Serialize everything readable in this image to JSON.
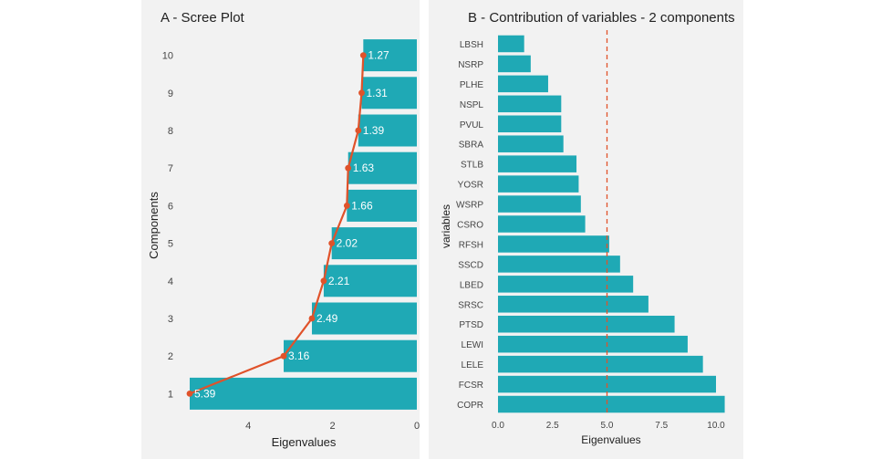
{
  "figure": {
    "panel_bg": "#f2f2f2",
    "bar_color": "#1fa9b5",
    "line_color": "#e0522a",
    "ref_line_color": "#e0522a"
  },
  "chart_data": [
    {
      "type": "bar",
      "orientation": "horizontal",
      "x_reversed": true,
      "title": "A - Scree Plot",
      "xlabel": "Eigenvalues",
      "ylabel": "Components",
      "categories": [
        "1",
        "2",
        "3",
        "4",
        "5",
        "6",
        "7",
        "8",
        "9",
        "10"
      ],
      "values": [
        5.39,
        3.16,
        2.49,
        2.21,
        2.02,
        1.66,
        1.63,
        1.39,
        1.31,
        1.27
      ],
      "data_labels": [
        "5.39",
        "3.16",
        "2.49",
        "2.21",
        "2.02",
        "1.66",
        "1.63",
        "1.39",
        "1.31",
        "1.27"
      ],
      "overlay": "line with points connecting bar ends",
      "xticks": [
        "0",
        "2",
        "4"
      ],
      "xlim": [
        0,
        5.5
      ],
      "grid": false
    },
    {
      "type": "bar",
      "orientation": "horizontal",
      "title": "B - Contribution of variables - 2 components",
      "xlabel": "Eigenvalues",
      "ylabel": "variables",
      "categories": [
        "COPR",
        "FCSR",
        "LELE",
        "LEWI",
        "PTSD",
        "SRSC",
        "LBED",
        "SSCD",
        "RFSH",
        "CSRO",
        "WSRP",
        "YOSR",
        "STLB",
        "SBRA",
        "PVUL",
        "NSPL",
        "PLHE",
        "NSRP",
        "LBSH"
      ],
      "values": [
        10.4,
        10.0,
        9.4,
        8.7,
        8.1,
        6.9,
        6.2,
        5.6,
        5.1,
        4.0,
        3.8,
        3.7,
        3.6,
        3.0,
        2.9,
        2.9,
        2.3,
        1.5,
        1.2
      ],
      "reference_line": 5.0,
      "xticks": [
        "0.0",
        "2.5",
        "5.0",
        "7.5",
        "10.0"
      ],
      "xlim": [
        0,
        10.6
      ],
      "grid": false
    }
  ]
}
